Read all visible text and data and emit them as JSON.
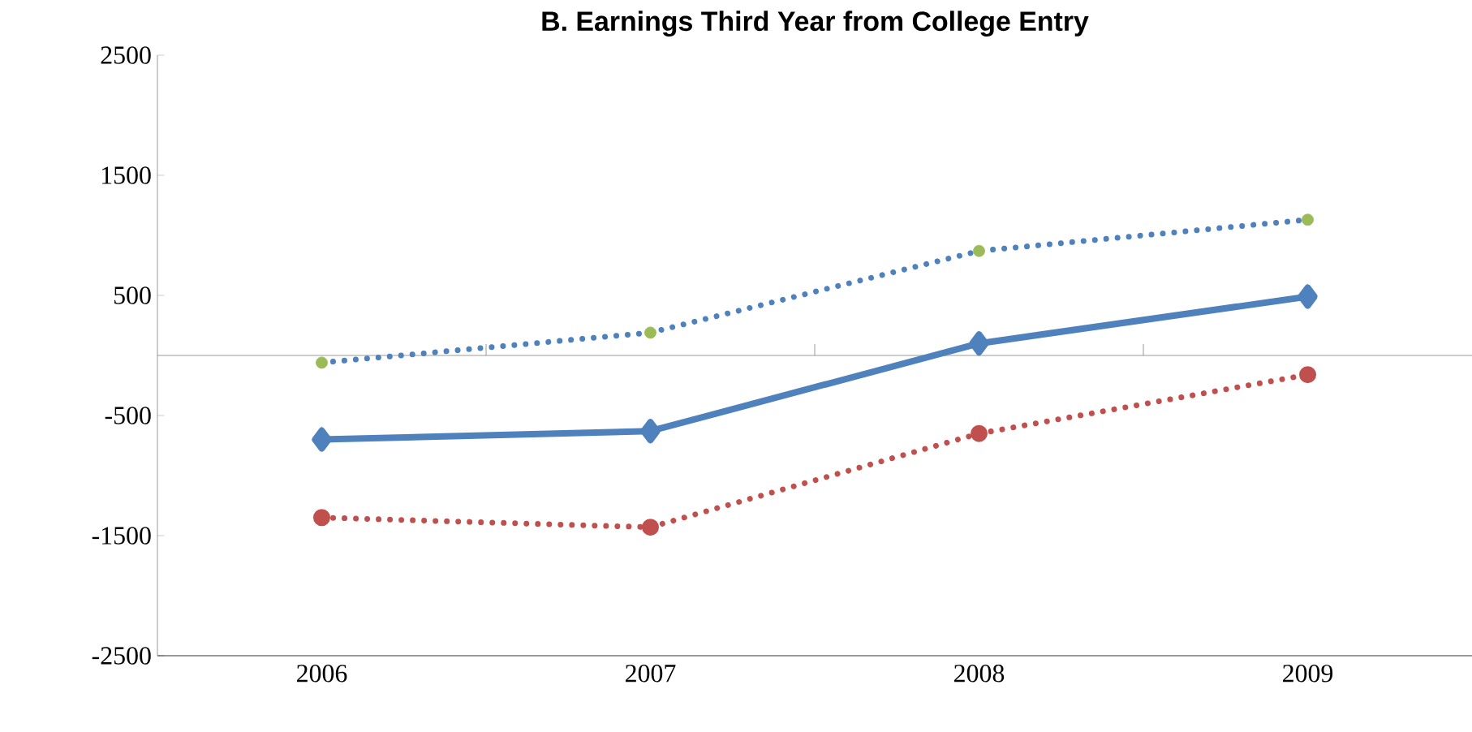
{
  "chart_data": {
    "type": "line",
    "title": "B. Earnings Third Year from College Entry",
    "categories": [
      "2006",
      "2007",
      "2008",
      "2009"
    ],
    "series": [
      {
        "color": "#4f81bd",
        "values": [
          -700,
          -630,
          100,
          490
        ],
        "marker": "diamond",
        "line_style": "solid"
      },
      {
        "color": "#4f81bd",
        "values": [
          -60,
          190,
          870,
          1130
        ],
        "marker": "none",
        "line_style": "dotted"
      },
      {
        "type": "scatter",
        "color": "#9bbb59",
        "values": [
          -60,
          190,
          870,
          1130
        ],
        "marker": "circle"
      },
      {
        "color": "#c0504d",
        "values": [
          -1350,
          -1430,
          -650,
          -160
        ],
        "marker": "circle",
        "line_style": "dotted"
      }
    ],
    "ylim": [
      -2500,
      2500
    ],
    "yticks": [
      -2500,
      -1500,
      -500,
      500,
      1500,
      2500
    ],
    "grid": false
  }
}
